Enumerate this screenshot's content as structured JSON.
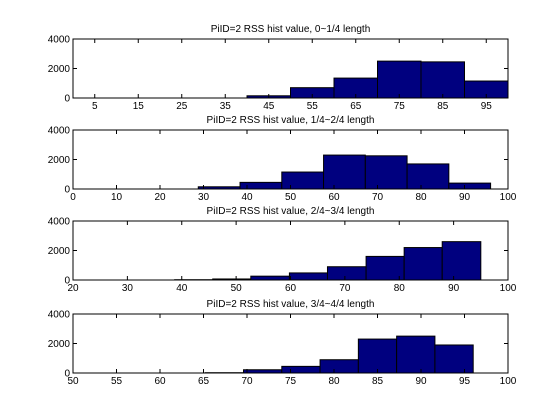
{
  "chart_data": [
    {
      "type": "bar",
      "title": "PiID=2 RSS hist value, 0~1/4 length",
      "xlim": [
        0,
        100
      ],
      "ylim": [
        0,
        4000
      ],
      "xticks": [
        "5",
        "15",
        "25",
        "35",
        "45",
        "55",
        "65",
        "75",
        "85",
        "95"
      ],
      "yticks": [
        "0",
        "2000",
        "4000"
      ],
      "bin_edges": [
        0,
        10,
        20,
        30,
        40,
        50,
        60,
        70,
        80,
        90,
        100
      ],
      "values": [
        0,
        0,
        0,
        0,
        150,
        700,
        1350,
        2500,
        2450,
        1150
      ]
    },
    {
      "type": "bar",
      "title": "PiID=2 RSS hist value, 1/4~2/4 length",
      "xlim": [
        0,
        100
      ],
      "ylim": [
        0,
        4000
      ],
      "xticks": [
        "0",
        "10",
        "20",
        "30",
        "40",
        "50",
        "60",
        "70",
        "80",
        "90",
        "100"
      ],
      "yticks": [
        "0",
        "2000",
        "4000"
      ],
      "bin_edges": [
        0,
        9.6,
        19.2,
        28.8,
        38.4,
        48,
        57.6,
        67.2,
        76.8,
        86.4,
        96
      ],
      "values": [
        0,
        0,
        0,
        150,
        450,
        1150,
        2300,
        2250,
        1700,
        400
      ]
    },
    {
      "type": "bar",
      "title": "PiID=2 RSS hist value, 2/4~3/4 length",
      "xlim": [
        20,
        100
      ],
      "ylim": [
        0,
        4000
      ],
      "xticks": [
        "20",
        "30",
        "40",
        "50",
        "60",
        "70",
        "80",
        "90",
        "100"
      ],
      "yticks": [
        "0",
        "2000",
        "4000"
      ],
      "bin_edges": [
        24.6,
        31.6,
        38.7,
        45.7,
        52.7,
        59.8,
        66.8,
        73.9,
        80.9,
        87.9,
        95
      ],
      "values": [
        0,
        0,
        20,
        70,
        260,
        480,
        900,
        1600,
        2200,
        2600
      ]
    },
    {
      "type": "bar",
      "title": "PiID=2 RSS hist value, 3/4~4/4 length",
      "xlim": [
        50,
        100
      ],
      "ylim": [
        0,
        4000
      ],
      "xticks": [
        "50",
        "55",
        "60",
        "65",
        "70",
        "75",
        "80",
        "85",
        "90",
        "95",
        "100"
      ],
      "yticks": [
        "0",
        "2000",
        "4000"
      ],
      "bin_edges": [
        52,
        56.4,
        60.8,
        65.2,
        69.6,
        74,
        78.4,
        82.8,
        87.2,
        91.6,
        96
      ],
      "values": [
        0,
        0,
        0,
        20,
        220,
        450,
        900,
        2300,
        2500,
        1900
      ]
    }
  ]
}
